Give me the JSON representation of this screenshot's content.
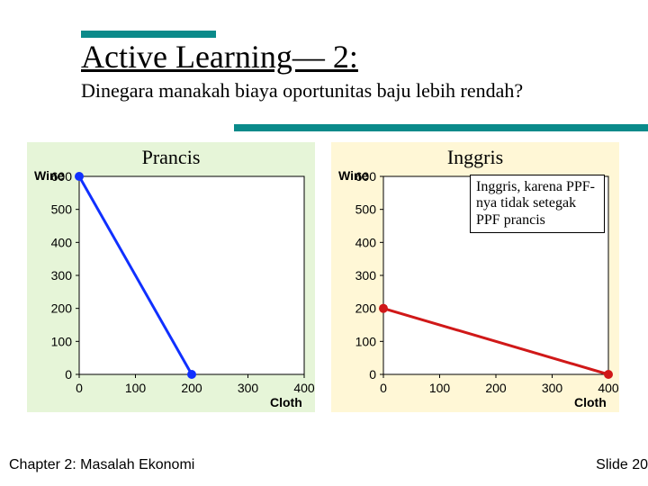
{
  "accent_bar_color": "#0a8a8a",
  "title": "Active Learning— 2:",
  "subtitle": "Dinegara manakah biaya oportunitas baju lebih rendah?",
  "footer_left": "Chapter 2: Masalah Ekonomi",
  "footer_right": "Slide 20",
  "charts": {
    "france": {
      "type": "line",
      "title": "Prancis",
      "background_color": "#e6f5d8",
      "plot_background": "#ffffff",
      "axis_color": "#000000",
      "grid_color": "#c8c8c8",
      "tick_fontsize": 14,
      "tick_font": "Arial",
      "y_label": "Wine",
      "x_label": "Cloth",
      "xlim": [
        0,
        400
      ],
      "ylim": [
        0,
        600
      ],
      "x_ticks": [
        0,
        100,
        200,
        300,
        400
      ],
      "y_ticks": [
        0,
        100,
        200,
        300,
        400,
        500,
        600
      ],
      "line_color": "#1030ff",
      "line_width": 3,
      "marker_color": "#1030ff",
      "marker_size": 5,
      "points": [
        [
          0,
          600
        ],
        [
          200,
          0
        ]
      ]
    },
    "england": {
      "type": "line",
      "title": "Inggris",
      "background_color": "#fff7d6",
      "plot_background": "#ffffff",
      "axis_color": "#000000",
      "grid_color": "#c8c8c8",
      "tick_fontsize": 14,
      "tick_font": "Arial",
      "y_label": "Wine",
      "x_label": "Cloth",
      "xlim": [
        0,
        400
      ],
      "ylim": [
        0,
        600
      ],
      "x_ticks": [
        0,
        100,
        200,
        300,
        400
      ],
      "y_ticks": [
        0,
        100,
        200,
        300,
        400,
        500,
        600
      ],
      "line_color": "#d01818",
      "line_width": 3,
      "marker_color": "#d01818",
      "marker_size": 5,
      "points": [
        [
          0,
          200
        ],
        [
          400,
          0
        ]
      ],
      "annotation": "Inggris, karena PPF-nya tidak setegak PPF prancis"
    }
  }
}
